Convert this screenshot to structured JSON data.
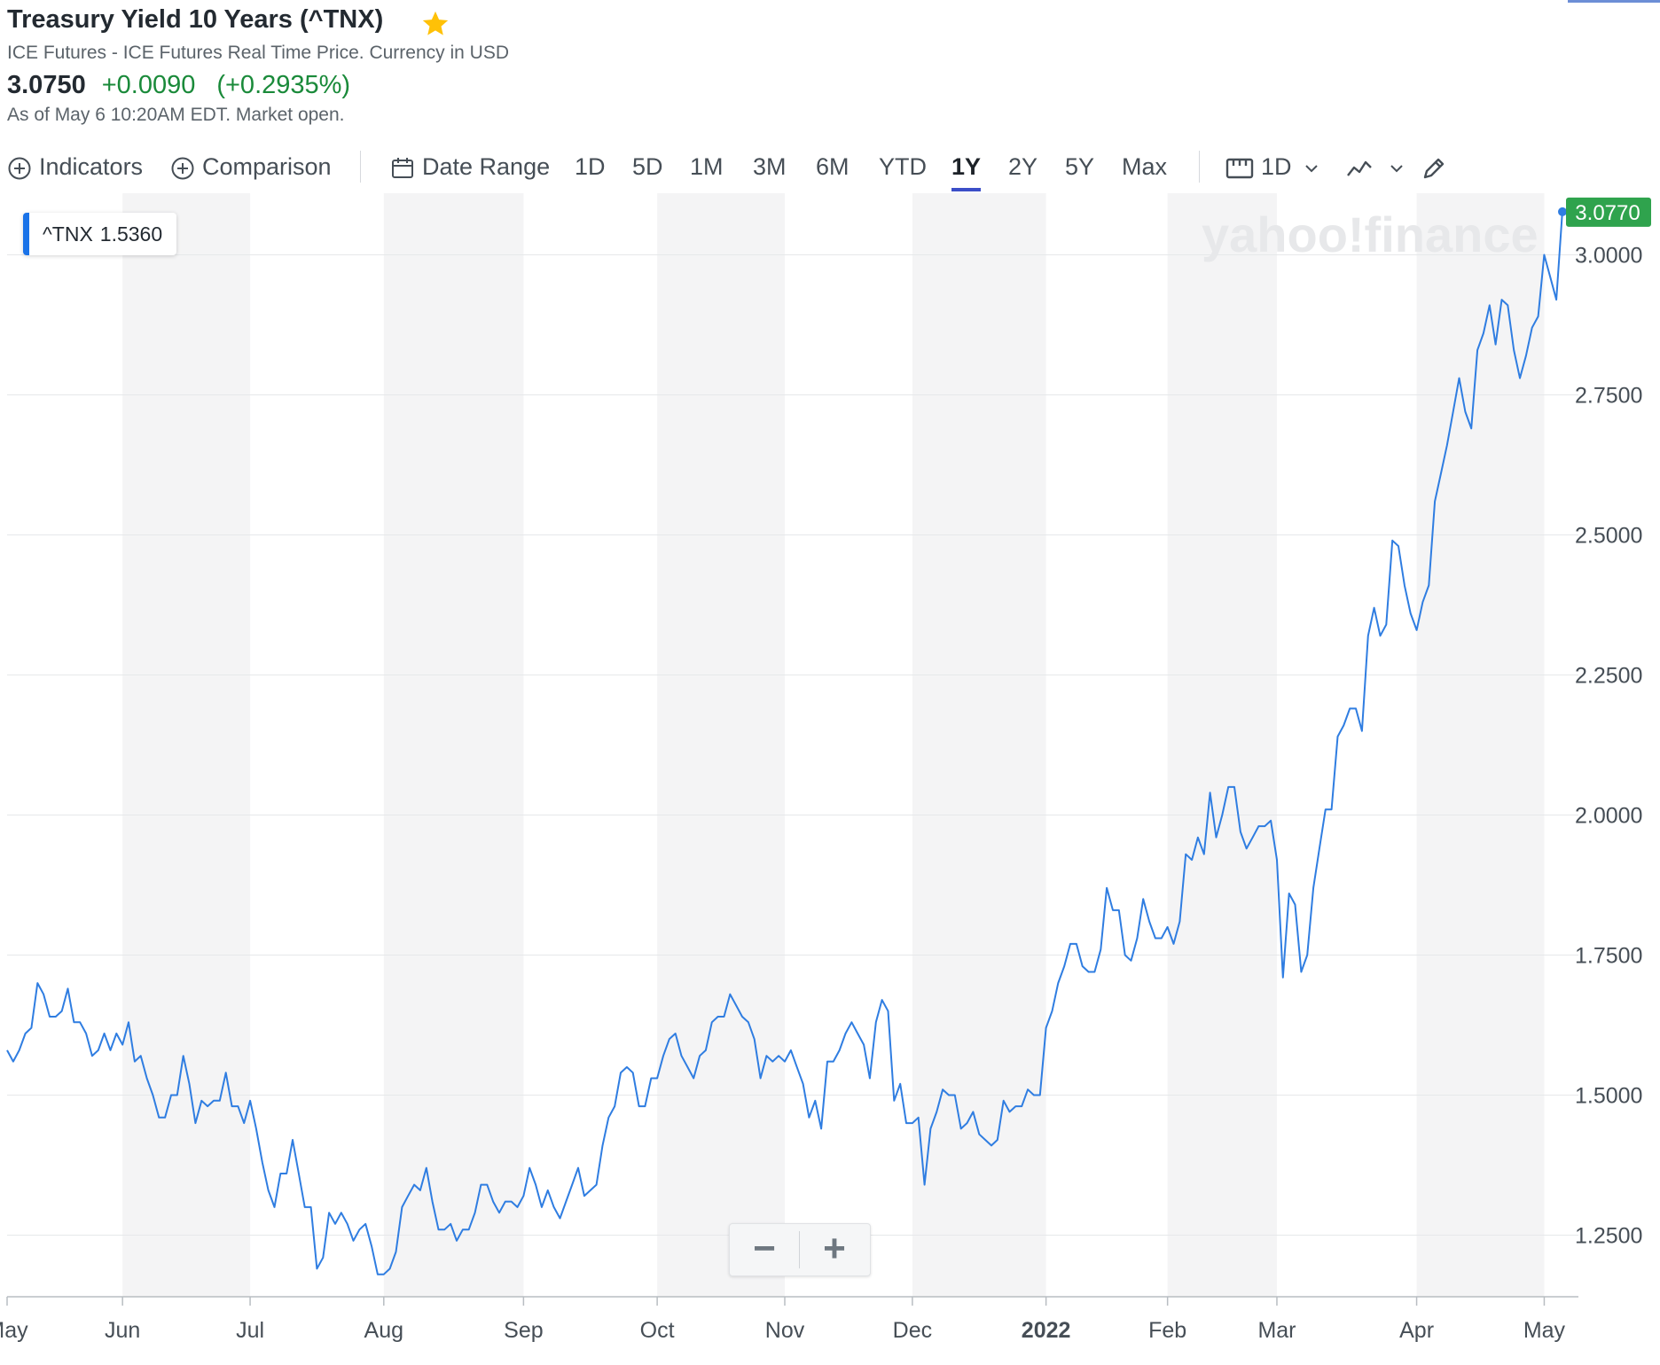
{
  "header": {
    "title": "Treasury Yield 10 Years (^TNX)",
    "subtitle": "ICE Futures - ICE Futures Real Time Price. Currency in USD",
    "price": "3.0750",
    "change": "+0.0090",
    "change_pct": "(+0.2935%)",
    "as_of": "As of May 6 10:20AM EDT. Market open."
  },
  "toolbar": {
    "indicators": "Indicators",
    "comparison": "Comparison",
    "date_range": "Date Range",
    "ranges": [
      "1D",
      "5D",
      "1M",
      "3M",
      "6M",
      "YTD",
      "1Y",
      "2Y",
      "5Y",
      "Max"
    ],
    "selected_range": "1Y",
    "interval": "1D"
  },
  "legend": {
    "symbol": "^TNX",
    "value": "1.5360"
  },
  "watermark": "yahoo!finance",
  "zoom": {
    "minus": "−",
    "plus": "+"
  },
  "colors": {
    "line": "#2f7de1",
    "up": "#1a8a3a",
    "accent": "#3b4ec8",
    "band": "#f4f4f5",
    "last_price_bg": "#2fa34d"
  },
  "chart_data": {
    "type": "line",
    "series": [
      {
        "name": "^TNX",
        "values": [
          1.58,
          1.56,
          1.58,
          1.61,
          1.62,
          1.7,
          1.68,
          1.64,
          1.64,
          1.65,
          1.69,
          1.63,
          1.63,
          1.61,
          1.57,
          1.58,
          1.61,
          1.58,
          1.61,
          1.59,
          1.63,
          1.56,
          1.57,
          1.53,
          1.5,
          1.46,
          1.46,
          1.5,
          1.5,
          1.57,
          1.52,
          1.45,
          1.49,
          1.48,
          1.49,
          1.49,
          1.54,
          1.48,
          1.48,
          1.45,
          1.49,
          1.44,
          1.38,
          1.33,
          1.3,
          1.36,
          1.36,
          1.42,
          1.36,
          1.3,
          1.3,
          1.19,
          1.21,
          1.29,
          1.27,
          1.29,
          1.27,
          1.24,
          1.26,
          1.27,
          1.23,
          1.18,
          1.18,
          1.19,
          1.22,
          1.3,
          1.32,
          1.34,
          1.33,
          1.37,
          1.31,
          1.26,
          1.26,
          1.27,
          1.24,
          1.26,
          1.26,
          1.29,
          1.34,
          1.34,
          1.31,
          1.29,
          1.31,
          1.31,
          1.3,
          1.32,
          1.37,
          1.34,
          1.3,
          1.33,
          1.3,
          1.28,
          1.31,
          1.34,
          1.37,
          1.32,
          1.33,
          1.34,
          1.41,
          1.46,
          1.48,
          1.54,
          1.55,
          1.54,
          1.48,
          1.48,
          1.53,
          1.53,
          1.57,
          1.6,
          1.61,
          1.57,
          1.55,
          1.53,
          1.57,
          1.58,
          1.63,
          1.64,
          1.64,
          1.68,
          1.66,
          1.64,
          1.63,
          1.6,
          1.53,
          1.57,
          1.56,
          1.57,
          1.56,
          1.58,
          1.55,
          1.52,
          1.46,
          1.49,
          1.44,
          1.56,
          1.56,
          1.58,
          1.61,
          1.63,
          1.61,
          1.59,
          1.53,
          1.63,
          1.67,
          1.65,
          1.49,
          1.52,
          1.45,
          1.45,
          1.46,
          1.34,
          1.44,
          1.47,
          1.51,
          1.5,
          1.5,
          1.44,
          1.45,
          1.47,
          1.43,
          1.42,
          1.41,
          1.42,
          1.49,
          1.47,
          1.48,
          1.48,
          1.51,
          1.5,
          1.5,
          1.62,
          1.65,
          1.7,
          1.73,
          1.77,
          1.77,
          1.73,
          1.72,
          1.72,
          1.76,
          1.87,
          1.83,
          1.83,
          1.75,
          1.74,
          1.78,
          1.85,
          1.81,
          1.78,
          1.78,
          1.8,
          1.77,
          1.81,
          1.93,
          1.92,
          1.96,
          1.93,
          2.04,
          1.96,
          2.0,
          2.05,
          2.05,
          1.97,
          1.94,
          1.96,
          1.98,
          1.98,
          1.99,
          1.92,
          1.71,
          1.86,
          1.84,
          1.72,
          1.75,
          1.87,
          1.94,
          2.01,
          2.01,
          2.14,
          2.16,
          2.19,
          2.19,
          2.15,
          2.32,
          2.37,
          2.32,
          2.34,
          2.49,
          2.48,
          2.41,
          2.36,
          2.33,
          2.38,
          2.41,
          2.56,
          2.61,
          2.66,
          2.72,
          2.78,
          2.72,
          2.69,
          2.83,
          2.86,
          2.91,
          2.84,
          2.92,
          2.91,
          2.83,
          2.78,
          2.82,
          2.87,
          2.89,
          3.0,
          2.96,
          2.92,
          3.08
        ]
      }
    ],
    "x_ticks": [
      "May",
      "Jun",
      "Jul",
      "Aug",
      "Sep",
      "Oct",
      "Nov",
      "Dec",
      "2022",
      "Feb",
      "Mar",
      "Apr",
      "May"
    ],
    "x_tick_index": [
      0,
      19,
      40,
      62,
      85,
      107,
      128,
      149,
      171,
      191,
      209,
      232,
      253
    ],
    "y_ticks": [
      "1.2500",
      "1.5000",
      "1.7500",
      "2.0000",
      "2.2500",
      "2.5000",
      "2.7500",
      "3.0000"
    ],
    "ylim": [
      1.14,
      3.11
    ],
    "last_price_label": "3.0770",
    "last_value": 3.077,
    "grid": true
  }
}
